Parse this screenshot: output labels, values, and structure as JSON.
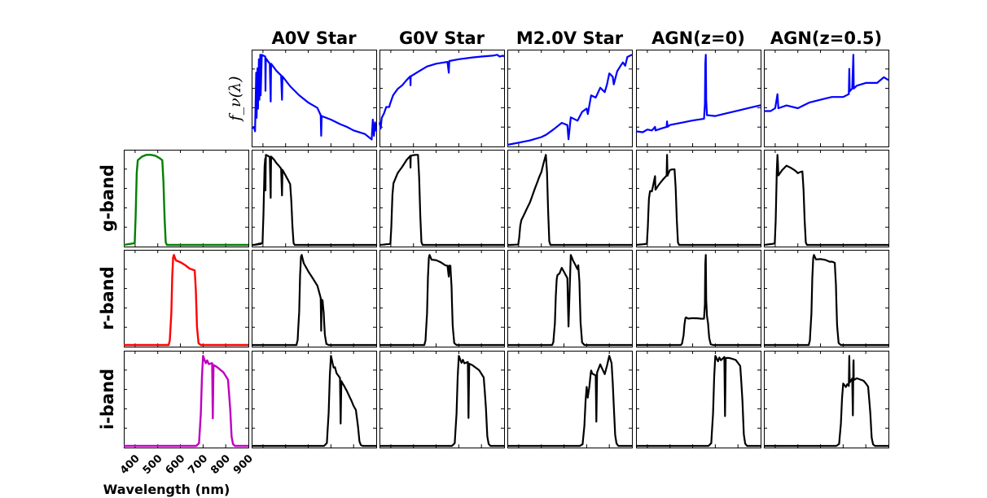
{
  "chart_data": {
    "type": "line",
    "columns": [
      "A0V Star",
      "G0V Star",
      "M2.0V Star",
      "AGN(z=0)",
      "AGN(z=0.5)"
    ],
    "rows": [
      "g-band",
      "r-band",
      "i-band"
    ],
    "top_ylabel": "f_ν(λ)",
    "xlabel": "Wavelength (nm)",
    "xlim": [
      350,
      900
    ],
    "xticks": [
      400,
      500,
      600,
      700,
      800,
      900
    ],
    "colors": {
      "spectrum": "#0000ff",
      "product": "#000000",
      "g": "#008000",
      "r": "#ff0000",
      "i": "#bf00bf"
    },
    "filters": {
      "g": [
        [
          350,
          0
        ],
        [
          398,
          0.02
        ],
        [
          402,
          0.3
        ],
        [
          407,
          0.8
        ],
        [
          412,
          0.94
        ],
        [
          430,
          0.98
        ],
        [
          450,
          1
        ],
        [
          470,
          1
        ],
        [
          490,
          0.99
        ],
        [
          510,
          0.96
        ],
        [
          520,
          0.94
        ],
        [
          525,
          0.7
        ],
        [
          530,
          0.3
        ],
        [
          535,
          0.03
        ],
        [
          540,
          0
        ],
        [
          900,
          0
        ]
      ],
      "r": [
        [
          350,
          0
        ],
        [
          548,
          0
        ],
        [
          553,
          0.05
        ],
        [
          560,
          0.35
        ],
        [
          564,
          0.75
        ],
        [
          568,
          0.96
        ],
        [
          571,
          0.99
        ],
        [
          580,
          0.93
        ],
        [
          600,
          0.91
        ],
        [
          620,
          0.88
        ],
        [
          640,
          0.84
        ],
        [
          663,
          0.82
        ],
        [
          668,
          0.6
        ],
        [
          673,
          0.2
        ],
        [
          680,
          0.02
        ],
        [
          690,
          0
        ],
        [
          900,
          0
        ]
      ],
      "i": [
        [
          350,
          0
        ],
        [
          670,
          0
        ],
        [
          682,
          0.03
        ],
        [
          690,
          0.35
        ],
        [
          695,
          0.75
        ],
        [
          700,
          0.98
        ],
        [
          706,
          0.94
        ],
        [
          712,
          0.9
        ],
        [
          718,
          0.93
        ],
        [
          725,
          0.89
        ],
        [
          740,
          0.9
        ],
        [
          743,
          0.3
        ],
        [
          746,
          0.88
        ],
        [
          760,
          0.86
        ],
        [
          790,
          0.8
        ],
        [
          810,
          0.72
        ],
        [
          820,
          0.4
        ],
        [
          826,
          0.1
        ],
        [
          832,
          0.02
        ],
        [
          840,
          0
        ],
        [
          900,
          0
        ]
      ]
    },
    "spectra": {
      "A0V Star": [
        [
          350,
          0.18
        ],
        [
          360,
          0.2
        ],
        [
          365,
          0.15
        ],
        [
          370,
          0.8
        ],
        [
          372,
          0.3
        ],
        [
          376,
          0.85
        ],
        [
          378,
          0.4
        ],
        [
          382,
          0.95
        ],
        [
          384,
          0.5
        ],
        [
          388,
          1.0
        ],
        [
          390,
          0.55
        ],
        [
          395,
          1.0
        ],
        [
          410,
          0.98
        ],
        [
          411,
          0.6
        ],
        [
          413,
          0.96
        ],
        [
          430,
          0.9
        ],
        [
          434,
          0.48
        ],
        [
          436,
          0.9
        ],
        [
          460,
          0.82
        ],
        [
          480,
          0.77
        ],
        [
          484,
          0.5
        ],
        [
          486,
          0.76
        ],
        [
          520,
          0.65
        ],
        [
          560,
          0.55
        ],
        [
          600,
          0.47
        ],
        [
          640,
          0.41
        ],
        [
          655,
          0.33
        ],
        [
          657,
          0.1
        ],
        [
          659,
          0.32
        ],
        [
          700,
          0.28
        ],
        [
          740,
          0.23
        ],
        [
          770,
          0.2
        ],
        [
          800,
          0.16
        ],
        [
          850,
          0.12
        ],
        [
          880,
          0.06
        ],
        [
          885,
          0.28
        ],
        [
          890,
          0.1
        ],
        [
          895,
          0.25
        ],
        [
          900,
          0.15
        ]
      ],
      "G0V Star": [
        [
          350,
          0.25
        ],
        [
          355,
          0.18
        ],
        [
          360,
          0.3
        ],
        [
          370,
          0.35
        ],
        [
          380,
          0.42
        ],
        [
          393,
          0.42
        ],
        [
          396,
          0.45
        ],
        [
          410,
          0.55
        ],
        [
          430,
          0.62
        ],
        [
          450,
          0.66
        ],
        [
          470,
          0.72
        ],
        [
          486,
          0.76
        ],
        [
          487,
          0.66
        ],
        [
          488,
          0.76
        ],
        [
          520,
          0.81
        ],
        [
          560,
          0.87
        ],
        [
          600,
          0.9
        ],
        [
          650,
          0.92
        ],
        [
          656,
          0.8
        ],
        [
          658,
          0.93
        ],
        [
          700,
          0.95
        ],
        [
          760,
          0.97
        ],
        [
          800,
          0.98
        ],
        [
          850,
          0.99
        ],
        [
          870,
          1.0
        ],
        [
          880,
          0.98
        ],
        [
          895,
          0.99
        ],
        [
          900,
          0.98
        ]
      ],
      "M2.0V Star": [
        [
          350,
          0.0
        ],
        [
          400,
          0.02
        ],
        [
          450,
          0.04
        ],
        [
          500,
          0.07
        ],
        [
          520,
          0.09
        ],
        [
          540,
          0.12
        ],
        [
          560,
          0.15
        ],
        [
          590,
          0.2
        ],
        [
          615,
          0.18
        ],
        [
          620,
          0.05
        ],
        [
          630,
          0.25
        ],
        [
          660,
          0.22
        ],
        [
          680,
          0.3
        ],
        [
          700,
          0.33
        ],
        [
          705,
          0.28
        ],
        [
          720,
          0.45
        ],
        [
          740,
          0.43
        ],
        [
          760,
          0.52
        ],
        [
          780,
          0.48
        ],
        [
          790,
          0.55
        ],
        [
          800,
          0.65
        ],
        [
          815,
          0.62
        ],
        [
          820,
          0.55
        ],
        [
          835,
          0.67
        ],
        [
          850,
          0.72
        ],
        [
          860,
          0.75
        ],
        [
          870,
          0.72
        ],
        [
          880,
          0.8
        ],
        [
          900,
          0.82
        ]
      ],
      "AGN(z=0)": [
        [
          350,
          0.15
        ],
        [
          380,
          0.14
        ],
        [
          400,
          0.17
        ],
        [
          420,
          0.16
        ],
        [
          434,
          0.2
        ],
        [
          436,
          0.16
        ],
        [
          460,
          0.18
        ],
        [
          485,
          0.2
        ],
        [
          487,
          0.26
        ],
        [
          489,
          0.2
        ],
        [
          500,
          0.22
        ],
        [
          560,
          0.25
        ],
        [
          600,
          0.27
        ],
        [
          650,
          0.29
        ],
        [
          654,
          0.45
        ],
        [
          656,
          0.9
        ],
        [
          658,
          1.0
        ],
        [
          660,
          0.5
        ],
        [
          663,
          0.33
        ],
        [
          700,
          0.32
        ],
        [
          750,
          0.35
        ],
        [
          800,
          0.38
        ],
        [
          850,
          0.41
        ],
        [
          900,
          0.44
        ]
      ],
      "AGN(z=0.5)": [
        [
          350,
          0.12
        ],
        [
          380,
          0.12
        ],
        [
          400,
          0.13
        ],
        [
          410,
          0.18
        ],
        [
          414,
          0.13
        ],
        [
          450,
          0.14
        ],
        [
          500,
          0.13
        ],
        [
          550,
          0.15
        ],
        [
          600,
          0.16
        ],
        [
          650,
          0.17
        ],
        [
          700,
          0.17
        ],
        [
          725,
          0.18
        ],
        [
          727,
          0.27
        ],
        [
          729,
          0.19
        ],
        [
          740,
          0.2
        ],
        [
          745,
          0.32
        ],
        [
          747,
          0.2
        ],
        [
          760,
          0.21
        ],
        [
          800,
          0.22
        ],
        [
          850,
          0.22
        ],
        [
          880,
          0.24
        ],
        [
          900,
          0.23
        ]
      ]
    }
  }
}
